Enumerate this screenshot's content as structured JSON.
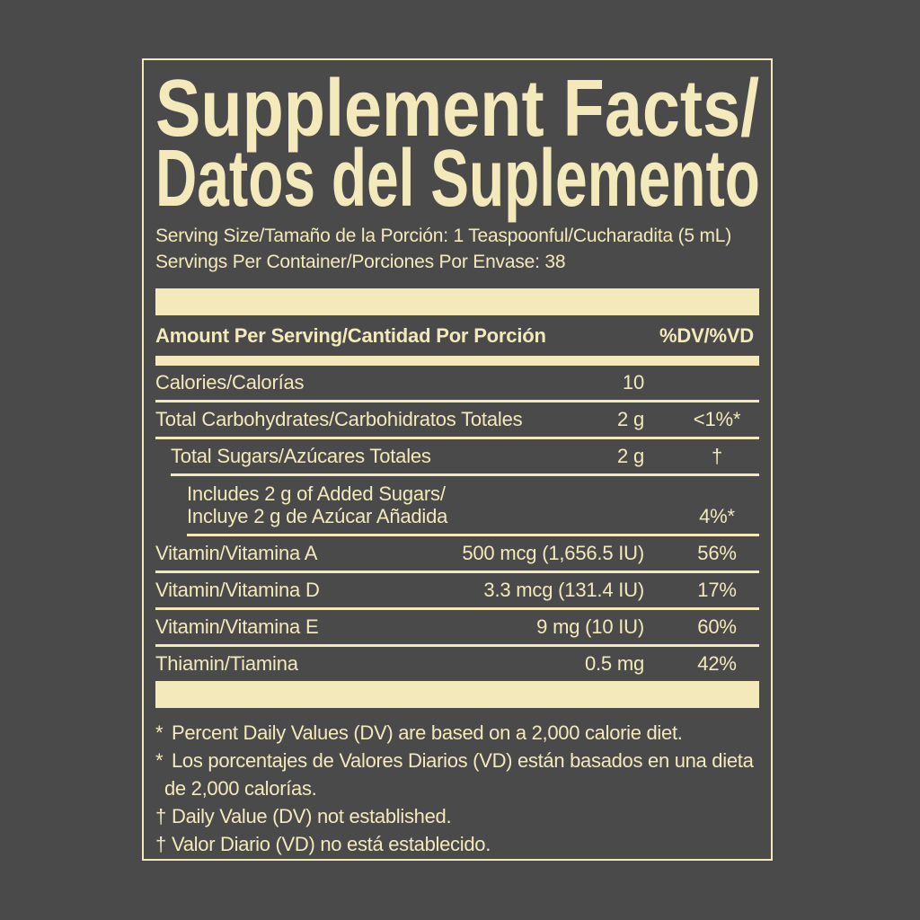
{
  "colors": {
    "background": "#4a4a4a",
    "cream": "#f3e9bb"
  },
  "title": {
    "line1": "Supplement Facts/",
    "line2": "Datos del Suplemento"
  },
  "serving_info": {
    "serving_size": "Serving Size/Tamaño de la Porción: 1 Teaspoonful/Cucharadita (5 mL)",
    "servings_per_container": "Servings Per Container/Porciones Por Envase: 38"
  },
  "columns": {
    "amount_header": "Amount Per Serving/Cantidad Por Porción",
    "dv_header": "%DV/%VD"
  },
  "rows": [
    {
      "name": "Calories/Calorías",
      "amount": "10",
      "dv": ""
    },
    {
      "name": "Total Carbohydrates/Carbohidratos Totales",
      "amount": "2 g",
      "dv": "<1%*"
    },
    {
      "name": "Total Sugars/Azúcares Totales",
      "amount": "2 g",
      "dv": "†"
    },
    {
      "name_line1": "Includes 2 g of Added Sugars/",
      "name_line2": "Incluye 2 g de Azúcar Añadida",
      "amount": "",
      "dv": "4%*"
    },
    {
      "name": "Vitamin/Vitamina A",
      "amount": "500 mcg (1,656.5 IU)",
      "dv": "56%"
    },
    {
      "name": "Vitamin/Vitamina D",
      "amount": "3.3 mcg (131.4 IU)",
      "dv": "17%"
    },
    {
      "name": "Vitamin/Vitamina E",
      "amount": "9 mg (10 IU)",
      "dv": "60%"
    },
    {
      "name": "Thiamin/Tiamina",
      "amount": "0.5 mg",
      "dv": "42%"
    }
  ],
  "footnotes": [
    {
      "marker": "*",
      "text": "Percent Daily Values (DV) are based on a 2,000 calorie diet."
    },
    {
      "marker": "*",
      "text": "Los porcentajes de Valores Diarios (VD) están basados en una dieta"
    },
    {
      "marker": "",
      "text": "de 2,000 calorías."
    },
    {
      "marker": "†",
      "text": "Daily Value (DV) not established."
    },
    {
      "marker": "†",
      "text": "Valor Diario (VD) no está establecido."
    }
  ]
}
